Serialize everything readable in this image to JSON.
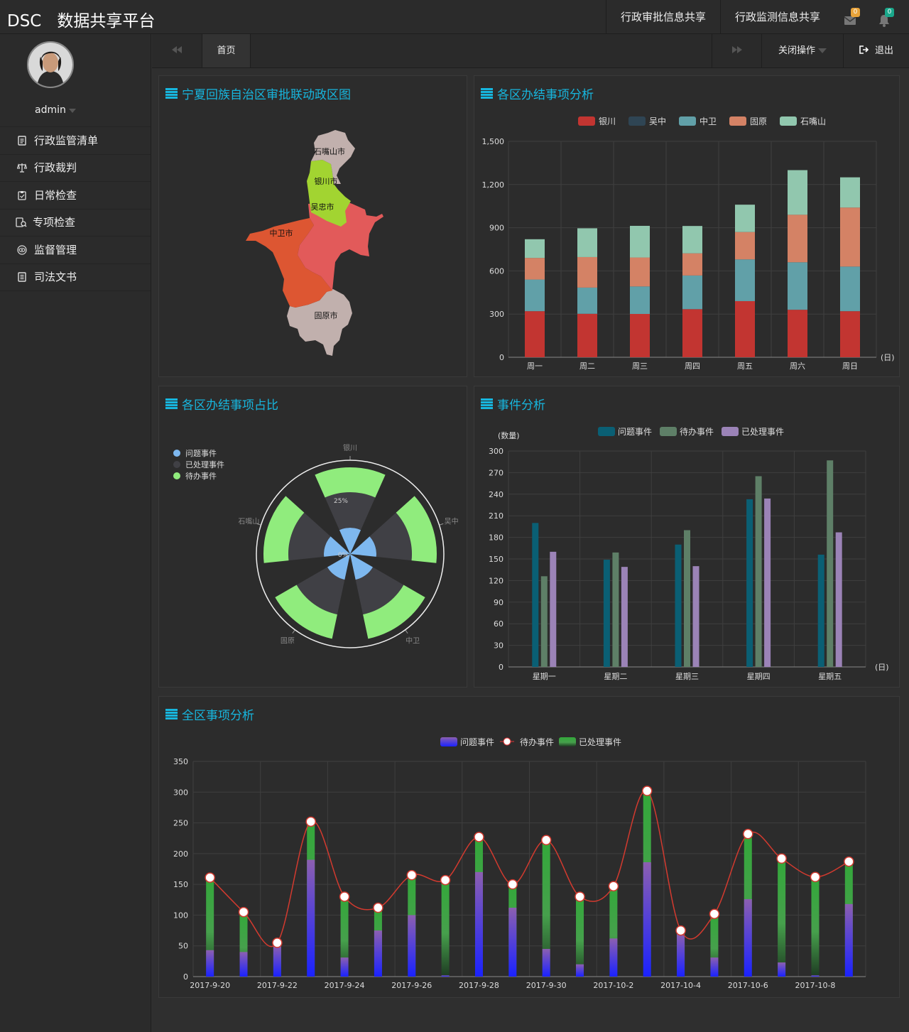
{
  "header": {
    "brand": "DSC",
    "title": "数据共享平台",
    "nav": [
      "行政审批信息共享",
      "行政监测信息共享"
    ],
    "mail_badge": "0",
    "bell_badge": "0"
  },
  "sidebar": {
    "username": "admin",
    "menu": [
      {
        "label": "行政监管清单",
        "icon": "list-icon"
      },
      {
        "label": "行政裁判",
        "icon": "scale-icon"
      },
      {
        "label": "日常检查",
        "icon": "clipboard-icon"
      },
      {
        "label": "专项检查",
        "icon": "inspect-icon"
      },
      {
        "label": "监督管理",
        "icon": "eye-icon"
      },
      {
        "label": "司法文书",
        "icon": "document-icon"
      }
    ]
  },
  "tabs": {
    "home": "首页",
    "close_ops": "关闭操作",
    "logout": "退出"
  },
  "panels": {
    "map": "宁夏回族自治区审批联动政区图",
    "bar": "各区办结事项分析",
    "polar": "各区办结事项占比",
    "event": "事件分析",
    "all": "全区事项分析"
  },
  "map_data": {
    "regions": [
      "石嘴山市",
      "银川市",
      "吴忠市",
      "中卫市",
      "固原市"
    ]
  },
  "chart_data": [
    {
      "type": "bar",
      "stacked": true,
      "categories": [
        "周一",
        "周二",
        "周三",
        "周四",
        "周五",
        "周六",
        "周日"
      ],
      "unit": "(日)",
      "series": [
        {
          "name": "银川",
          "color": "#c23531",
          "values": [
            320,
            302,
            301,
            334,
            390,
            330,
            320
          ]
        },
        {
          "name": "吴中",
          "color": "#2f4554",
          "values": [
            0,
            0,
            0,
            0,
            0,
            0,
            0
          ]
        },
        {
          "name": "中卫",
          "color": "#61a0a8",
          "values": [
            220,
            182,
            191,
            234,
            290,
            330,
            310
          ]
        },
        {
          "name": "固原",
          "color": "#d48265",
          "values": [
            150,
            212,
            201,
            154,
            190,
            330,
            410
          ]
        },
        {
          "name": "石嘴山",
          "color": "#91c7ae",
          "values": [
            130,
            200,
            220,
            190,
            190,
            310,
            210
          ]
        }
      ],
      "ylim": [
        0,
        1500
      ],
      "yticks": [
        "0",
        "300",
        "600",
        "900",
        "1,200",
        "1,500"
      ]
    },
    {
      "type": "polar-bar",
      "stacked": true,
      "categories": [
        "银川",
        "吴中",
        "中卫",
        "固原",
        "石嘴山"
      ],
      "radial_labels": [
        "0%",
        "25%"
      ],
      "series": [
        {
          "name": "问题事件",
          "color": "#7eb8ef",
          "values": [
            1,
            1,
            1,
            1,
            1
          ]
        },
        {
          "name": "已处理事件",
          "color": "#404045",
          "values": [
            1,
            1,
            1,
            1,
            1
          ]
        },
        {
          "name": "待办事件",
          "color": "#90ec7d",
          "values": [
            1,
            1,
            1,
            1,
            1
          ]
        }
      ]
    },
    {
      "type": "bar",
      "categories": [
        "星期一",
        "星期二",
        "星期三",
        "星期四",
        "星期五"
      ],
      "ylabel": "(数量)",
      "unit": "(日)",
      "series": [
        {
          "name": "问题事件",
          "color": "#0a5f74",
          "values": [
            200,
            149,
            170,
            233,
            156
          ]
        },
        {
          "name": "待办事件",
          "color": "#5e7f67",
          "values": [
            126,
            159,
            190,
            265,
            287
          ]
        },
        {
          "name": "已处理事件",
          "color": "#9b83b7",
          "values": [
            160,
            139,
            140,
            234,
            187
          ]
        }
      ],
      "ylim": [
        0,
        300
      ],
      "yticks": [
        "0",
        "30",
        "60",
        "90",
        "120",
        "150",
        "180",
        "210",
        "240",
        "270",
        "300"
      ]
    },
    {
      "type": "bar+line",
      "xticks": [
        "2017-9-20",
        "2017-9-22",
        "2017-9-24",
        "2017-9-26",
        "2017-9-28",
        "2017-9-30",
        "2017-10-2",
        "2017-10-4",
        "2017-10-6",
        "2017-10-8"
      ],
      "dates": [
        "2017-9-20",
        "2017-9-21",
        "2017-9-22",
        "2017-9-23",
        "2017-9-24",
        "2017-9-25",
        "2017-9-26",
        "2017-9-27",
        "2017-9-28",
        "2017-9-29",
        "2017-9-30",
        "2017-10-1",
        "2017-10-2",
        "2017-10-3",
        "2017-10-4",
        "2017-10-5",
        "2017-10-6",
        "2017-10-7",
        "2017-10-8",
        "2017-10-9"
      ],
      "series": [
        {
          "name": "问题事件",
          "type": "bar",
          "values": [
            43,
            40,
            50,
            190,
            31,
            75,
            100,
            2,
            170,
            112,
            45,
            20,
            62,
            186,
            70,
            31,
            126,
            23,
            2,
            118
          ]
        },
        {
          "name": "待办事件",
          "type": "line",
          "values": [
            161,
            105,
            55,
            252,
            130,
            112,
            165,
            157,
            227,
            150,
            222,
            130,
            147,
            302,
            75,
            102,
            232,
            192,
            162,
            187
          ]
        },
        {
          "name": "已处理事件",
          "type": "bar",
          "values": [
            161,
            105,
            55,
            252,
            130,
            112,
            165,
            157,
            227,
            150,
            222,
            130,
            147,
            302,
            75,
            102,
            232,
            192,
            162,
            187
          ]
        }
      ],
      "ylim": [
        0,
        350
      ],
      "yticks": [
        "0",
        "50",
        "100",
        "150",
        "200",
        "250",
        "300",
        "350"
      ]
    }
  ]
}
